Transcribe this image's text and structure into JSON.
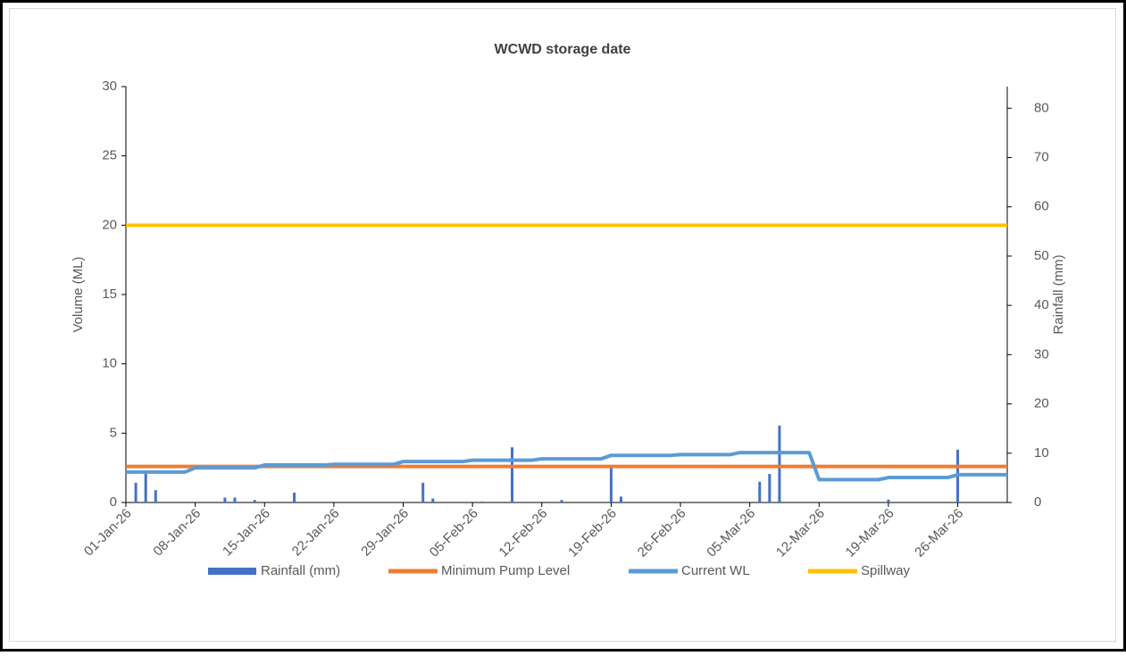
{
  "chart_data": {
    "type": "combo",
    "title": "WCWD storage date",
    "y_label": "Volume (ML)",
    "y2_label": "Rainfall (mm)",
    "categories": [
      "01-Jan-26",
      null,
      null,
      null,
      null,
      null,
      null,
      "08-Jan-26",
      null,
      null,
      null,
      null,
      null,
      null,
      "15-Jan-26",
      null,
      null,
      null,
      null,
      null,
      null,
      "22-Jan-26",
      null,
      null,
      null,
      null,
      null,
      null,
      "29-Jan-26",
      null,
      null,
      null,
      null,
      null,
      null,
      "05-Feb-26",
      null,
      null,
      null,
      null,
      null,
      null,
      "12-Feb-26",
      null,
      null,
      null,
      null,
      null,
      null,
      "19-Feb-26",
      null,
      null,
      null,
      null,
      null,
      null,
      "26-Feb-26",
      null,
      null,
      null,
      null,
      null,
      null,
      "05-Mar-26",
      null,
      null,
      null,
      null,
      null,
      null,
      "12-Mar-26",
      null,
      null,
      null,
      null,
      null,
      null,
      "19-Mar-26",
      null,
      null,
      null,
      null,
      null,
      null,
      "26-Mar-26",
      null,
      null,
      null,
      null,
      null
    ],
    "series": [
      {
        "name": "Rainfall (mm)",
        "type": "bar",
        "axis": "y2",
        "color": "#4472c4",
        "values": [
          0,
          4,
          6.2,
          2.5,
          0,
          0,
          0,
          0,
          0,
          0,
          1,
          1,
          0,
          0.5,
          0,
          0,
          0,
          2,
          0,
          0,
          0,
          0,
          0,
          0,
          0,
          0,
          0,
          0,
          0,
          0,
          4,
          0.8,
          0,
          0,
          0,
          0,
          0.2,
          0,
          0,
          11.2,
          0,
          0,
          0,
          0,
          0.5,
          0,
          0,
          0,
          0,
          7.6,
          1.2,
          0,
          0,
          0,
          0,
          0,
          0,
          0,
          0,
          0,
          0,
          0,
          0,
          0,
          4.2,
          5.8,
          15.6,
          0,
          0,
          0,
          0,
          0,
          0,
          0,
          0,
          0,
          0,
          0.6,
          0,
          0,
          0,
          0,
          0,
          0,
          10.7,
          0,
          0,
          0,
          0,
          0
        ]
      },
      {
        "name": "Minimum Pump Level",
        "type": "line",
        "color": "#ed7d31",
        "values": [
          2.6,
          2.6,
          2.6,
          2.6,
          2.6,
          2.6,
          2.6,
          2.6,
          2.6,
          2.6,
          2.6,
          2.6,
          2.6,
          2.6,
          2.6,
          2.6,
          2.6,
          2.6,
          2.6,
          2.6,
          2.6,
          2.6,
          2.6,
          2.6,
          2.6,
          2.6,
          2.6,
          2.6,
          2.6,
          2.6,
          2.6,
          2.6,
          2.6,
          2.6,
          2.6,
          2.6,
          2.6,
          2.6,
          2.6,
          2.6,
          2.6,
          2.6,
          2.6,
          2.6,
          2.6,
          2.6,
          2.6,
          2.6,
          2.6,
          2.6,
          2.6,
          2.6,
          2.6,
          2.6,
          2.6,
          2.6,
          2.6,
          2.6,
          2.6,
          2.6,
          2.6,
          2.6,
          2.6,
          2.6,
          2.6,
          2.6,
          2.6,
          2.6,
          2.6,
          2.6,
          2.6,
          2.6,
          2.6,
          2.6,
          2.6,
          2.6,
          2.6,
          2.6,
          2.6,
          2.6,
          2.6,
          2.6,
          2.6,
          2.6,
          2.6,
          2.6,
          2.6,
          2.6,
          2.6,
          2.6
        ]
      },
      {
        "name": "Current WL",
        "type": "line",
        "color": "#5b9bd5",
        "values": [
          2.2,
          2.2,
          2.2,
          2.2,
          2.2,
          2.2,
          2.2,
          2.5,
          2.5,
          2.5,
          2.5,
          2.5,
          2.5,
          2.5,
          2.7,
          2.7,
          2.7,
          2.7,
          2.7,
          2.7,
          2.7,
          2.75,
          2.75,
          2.75,
          2.75,
          2.75,
          2.75,
          2.75,
          2.95,
          2.95,
          2.95,
          2.95,
          2.95,
          2.95,
          2.95,
          3.05,
          3.05,
          3.05,
          3.05,
          3.05,
          3.05,
          3.05,
          3.15,
          3.15,
          3.15,
          3.15,
          3.15,
          3.15,
          3.15,
          3.4,
          3.4,
          3.4,
          3.4,
          3.4,
          3.4,
          3.4,
          3.45,
          3.45,
          3.45,
          3.45,
          3.45,
          3.45,
          3.6,
          3.6,
          3.6,
          3.6,
          3.6,
          3.6,
          3.6,
          3.6,
          1.65,
          1.65,
          1.65,
          1.65,
          1.65,
          1.65,
          1.65,
          1.8,
          1.8,
          1.8,
          1.8,
          1.8,
          1.8,
          1.8,
          2.0,
          2.0,
          2.0,
          2.0,
          2.0,
          2.0
        ]
      },
      {
        "name": "Spillway",
        "type": "line",
        "color": "#ffc000",
        "values": [
          20,
          20,
          20,
          20,
          20,
          20,
          20,
          20,
          20,
          20,
          20,
          20,
          20,
          20,
          20,
          20,
          20,
          20,
          20,
          20,
          20,
          20,
          20,
          20,
          20,
          20,
          20,
          20,
          20,
          20,
          20,
          20,
          20,
          20,
          20,
          20,
          20,
          20,
          20,
          20,
          20,
          20,
          20,
          20,
          20,
          20,
          20,
          20,
          20,
          20,
          20,
          20,
          20,
          20,
          20,
          20,
          20,
          20,
          20,
          20,
          20,
          20,
          20,
          20,
          20,
          20,
          20,
          20,
          20,
          20,
          20,
          20,
          20,
          20,
          20,
          20,
          20,
          20,
          20,
          20,
          20,
          20,
          20,
          20,
          20,
          20,
          20,
          20,
          20,
          20
        ]
      }
    ],
    "ylim": [
      0,
      30
    ],
    "yticks": [
      0,
      5,
      10,
      15,
      20,
      25,
      30
    ],
    "y2lim": [
      0,
      84.4
    ],
    "y2ticks": [
      0,
      10,
      20,
      30,
      40,
      50,
      60,
      70,
      80
    ],
    "legend": "bottom"
  }
}
